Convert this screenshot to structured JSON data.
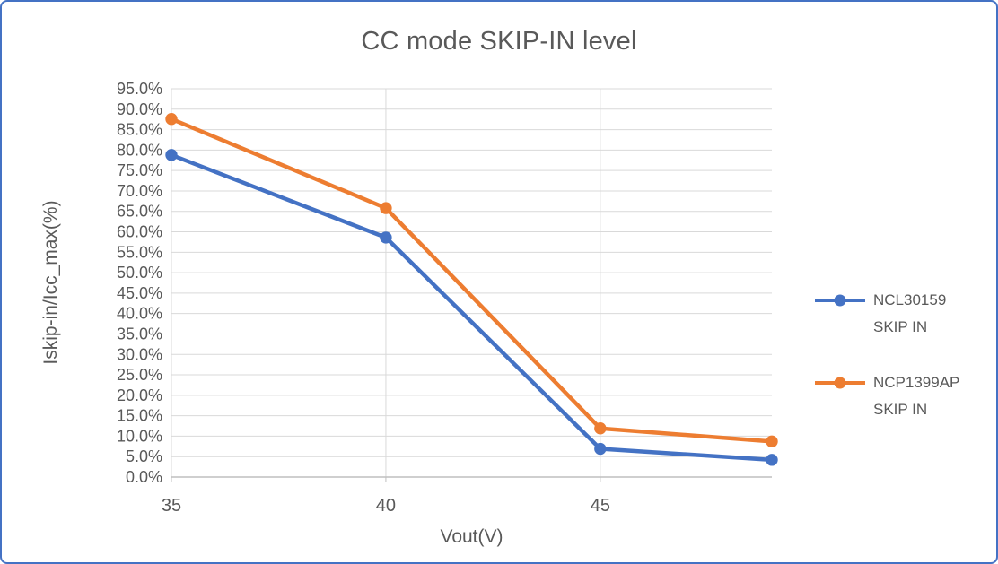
{
  "chart_data": {
    "type": "line",
    "title": "CC mode SKIP-IN level",
    "xlabel": "Vout(V)",
    "ylabel": "Iskip-in/Icc_max(%)",
    "x": [
      35,
      40,
      45,
      49
    ],
    "series": [
      {
        "name": "NCL30159 SKIP IN",
        "color": "#4472C4",
        "values": [
          78.8,
          58.6,
          6.9,
          4.2
        ]
      },
      {
        "name": "NCP1399AP SKIP IN",
        "color": "#ED7D31",
        "values": [
          87.6,
          65.8,
          11.9,
          8.7
        ]
      }
    ],
    "xlim": [
      35,
      49
    ],
    "xticks": [
      35,
      40,
      45
    ],
    "ylim": [
      0,
      95
    ],
    "ytick_step": 5,
    "ytick_decimals": 1,
    "ytick_suffix": "%",
    "grid": true,
    "legend_position": "right"
  },
  "legend": {
    "items": [
      {
        "line1": "NCL30159",
        "line2": "SKIP IN",
        "color": "#4472C4"
      },
      {
        "line1": "NCP1399AP",
        "line2": "SKIP IN",
        "color": "#ED7D31"
      }
    ]
  },
  "colors": {
    "accent_blue": "#4472C4",
    "accent_orange": "#ED7D31",
    "text_gray": "#595959",
    "gridline": "#D9D9D9",
    "axis_line": "#BFBFBF",
    "frame_border": "#4472C4",
    "background": "#FFFFFF"
  }
}
